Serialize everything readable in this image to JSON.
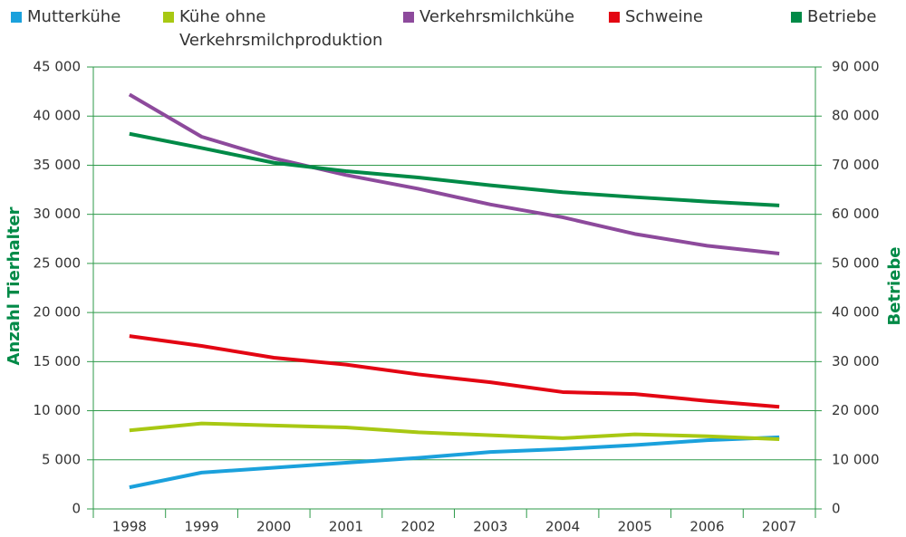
{
  "chart_data": {
    "type": "line",
    "y_label": "Anzahl Tierhalter",
    "y2_label": "Betriebe",
    "categories": [
      "1998",
      "1999",
      "2000",
      "2001",
      "2002",
      "2003",
      "2004",
      "2005",
      "2006",
      "2007"
    ],
    "series": [
      {
        "name": "Mutterkühe",
        "color": "#1ba1dc",
        "values": [
          2200,
          3700,
          4200,
          4700,
          5200,
          5800,
          6100,
          6500,
          7000,
          7300
        ]
      },
      {
        "name": "Kühe ohne Verkehrsmilchproduktion",
        "color": "#a8c813",
        "values": [
          8000,
          8700,
          8500,
          8300,
          7800,
          7500,
          7200,
          7600,
          7400,
          7100
        ]
      },
      {
        "name": "Verkehrsmilchkühe",
        "color": "#8d4a9c",
        "values": [
          42200,
          37900,
          35700,
          34000,
          32600,
          31000,
          29700,
          28000,
          26800,
          26000
        ]
      },
      {
        "name": "Schweine",
        "color": "#e30613",
        "values": [
          17600,
          16600,
          15400,
          14700,
          13700,
          12900,
          11900,
          11700,
          11000,
          10400
        ]
      },
      {
        "name": "Betriebe",
        "color": "#008a47",
        "axis": "y2",
        "values": [
          76400,
          73500,
          70500,
          68800,
          67500,
          65900,
          64500,
          63500,
          62600,
          61800
        ]
      }
    ],
    "ylim": [
      0,
      45000
    ],
    "yticks": [
      0,
      {
        "value": 5000,
        "label": "5 000"
      },
      {
        "value": 10000,
        "label": "10 000"
      },
      {
        "value": 15000,
        "label": "15 000"
      },
      {
        "value": 20000,
        "label": "20 000"
      },
      {
        "value": 25000,
        "label": "25 000"
      },
      {
        "value": 30000,
        "label": "30 000"
      },
      {
        "value": 35000,
        "label": "35 000"
      },
      {
        "value": 40000,
        "label": "40 000"
      },
      {
        "value": 45000,
        "label": "45 000"
      }
    ],
    "y2lim": [
      0,
      90000
    ],
    "y2ticks": [
      0,
      {
        "value": 10000,
        "label": "10 000"
      },
      {
        "value": 20000,
        "label": "20 000"
      },
      {
        "value": 30000,
        "label": "30 000"
      },
      {
        "value": 40000,
        "label": "40 000"
      },
      {
        "value": 50000,
        "label": "50 000"
      },
      {
        "value": 60000,
        "label": "60 000"
      },
      {
        "value": 70000,
        "label": "70 000"
      },
      {
        "value": 80000,
        "label": "80 000"
      },
      {
        "value": 90000,
        "label": "90 000"
      }
    ],
    "grid": true,
    "grid_color": "#2e9a4a"
  }
}
